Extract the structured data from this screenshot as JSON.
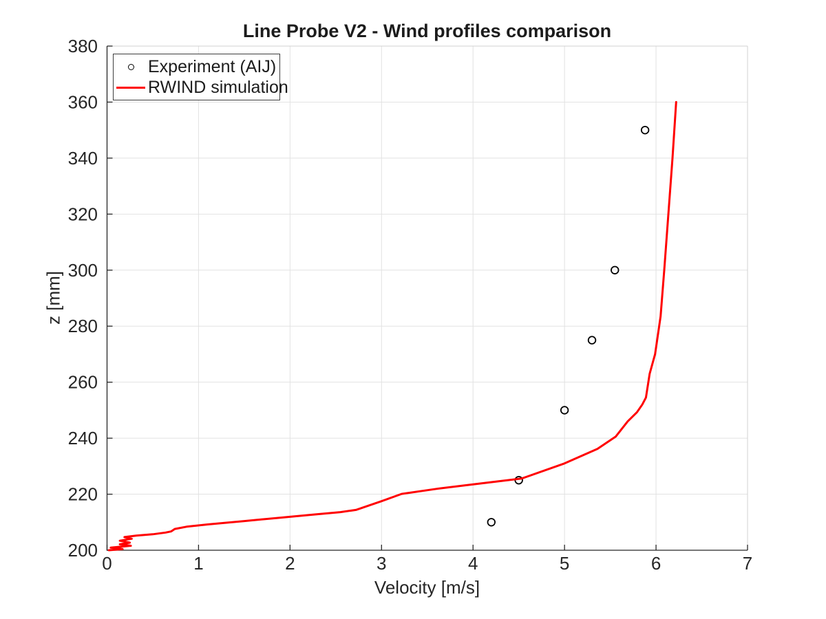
{
  "figure": {
    "background": "#ffffff"
  },
  "chart_data": {
    "type": "line",
    "title": "Line Probe V2 - Wind profiles comparison",
    "xlabel": "Velocity [m/s]",
    "ylabel": "z [mm]",
    "xlim": [
      0,
      7
    ],
    "ylim": [
      200,
      380
    ],
    "x_ticks": [
      0,
      1,
      2,
      3,
      4,
      5,
      6,
      7
    ],
    "y_ticks": [
      200,
      220,
      240,
      260,
      280,
      300,
      320,
      340,
      360,
      380
    ],
    "grid": true,
    "legend_position": "top-left",
    "colors": {
      "grid": "#e2e2e2",
      "box_edge": "#d0d0d0",
      "axis": "#262626",
      "experiment": "#000000",
      "simulation": "#ff0000"
    },
    "series": [
      {
        "name": "Experiment (AIJ)",
        "type": "scatter",
        "marker": "open-circle",
        "color": "#000000",
        "points": [
          [
            4.2,
            210
          ],
          [
            4.5,
            225
          ],
          [
            5.0,
            250
          ],
          [
            5.3,
            275
          ],
          [
            5.55,
            300
          ],
          [
            5.88,
            350
          ]
        ]
      },
      {
        "name": "RWIND simulation",
        "type": "line",
        "color": "#ff0000",
        "points": [
          [
            0.02,
            200.0
          ],
          [
            0.17,
            200.4
          ],
          [
            0.04,
            200.9
          ],
          [
            0.26,
            201.6
          ],
          [
            0.14,
            202.1
          ],
          [
            0.25,
            202.7
          ],
          [
            0.14,
            203.4
          ],
          [
            0.27,
            204.1
          ],
          [
            0.19,
            204.7
          ],
          [
            0.32,
            205.2
          ],
          [
            0.5,
            205.7
          ],
          [
            0.64,
            206.3
          ],
          [
            0.7,
            206.7
          ],
          [
            0.74,
            207.6
          ],
          [
            0.87,
            208.4
          ],
          [
            1.1,
            209.2
          ],
          [
            1.5,
            210.4
          ],
          [
            1.85,
            211.5
          ],
          [
            2.25,
            212.7
          ],
          [
            2.55,
            213.6
          ],
          [
            2.72,
            214.4
          ],
          [
            3.0,
            217.5
          ],
          [
            3.22,
            220.1
          ],
          [
            3.6,
            221.9
          ],
          [
            3.97,
            223.4
          ],
          [
            4.53,
            225.6
          ],
          [
            5.0,
            231.0
          ],
          [
            5.36,
            236.2
          ],
          [
            5.56,
            240.6
          ],
          [
            5.69,
            246.0
          ],
          [
            5.79,
            249.2
          ],
          [
            5.85,
            252.0
          ],
          [
            5.89,
            254.5
          ],
          [
            5.93,
            263.0
          ],
          [
            5.99,
            270.0
          ],
          [
            6.05,
            283.5
          ],
          [
            6.09,
            300.0
          ],
          [
            6.13,
            318.0
          ],
          [
            6.18,
            340.0
          ],
          [
            6.22,
            360.0
          ]
        ]
      }
    ]
  },
  "legend": {
    "items": [
      {
        "label": "Experiment (AIJ)"
      },
      {
        "label": "RWIND simulation"
      }
    ]
  }
}
